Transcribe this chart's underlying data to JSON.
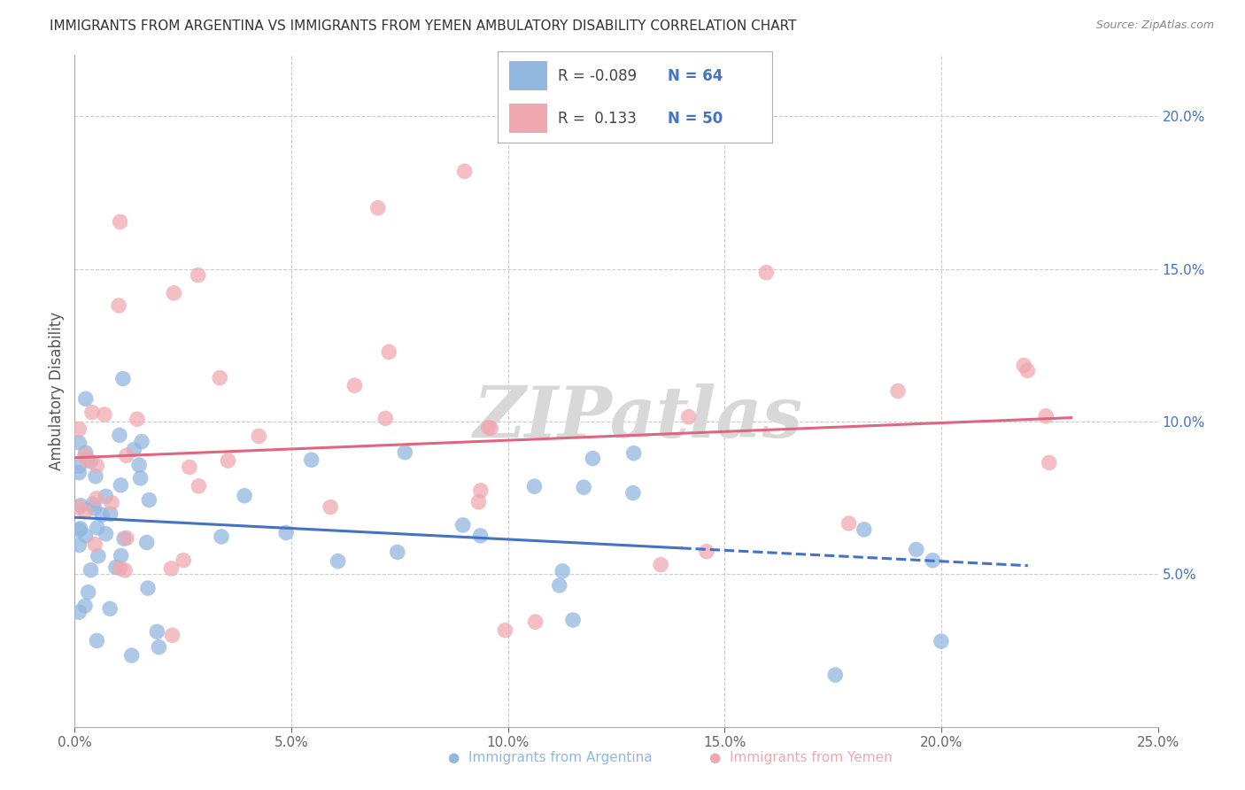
{
  "title": "IMMIGRANTS FROM ARGENTINA VS IMMIGRANTS FROM YEMEN AMBULATORY DISABILITY CORRELATION CHART",
  "source": "Source: ZipAtlas.com",
  "ylabel": "Ambulatory Disability",
  "xlim": [
    0.0,
    0.25
  ],
  "ylim": [
    0.0,
    0.22
  ],
  "argentina_R": -0.089,
  "argentina_N": 64,
  "yemen_R": 0.133,
  "yemen_N": 50,
  "argentina_color": "#92b8e0",
  "yemen_color": "#f0a8b0",
  "argentina_line_color": "#4472c4",
  "yemen_line_color": "#e06680",
  "background_color": "#ffffff",
  "grid_color": "#cccccc",
  "watermark_text": "ZIPatlas",
  "watermark_color": "#d8d8d8",
  "right_axis_color": "#4472c4",
  "title_color": "#333333",
  "source_color": "#888888",
  "tick_color": "#666666"
}
